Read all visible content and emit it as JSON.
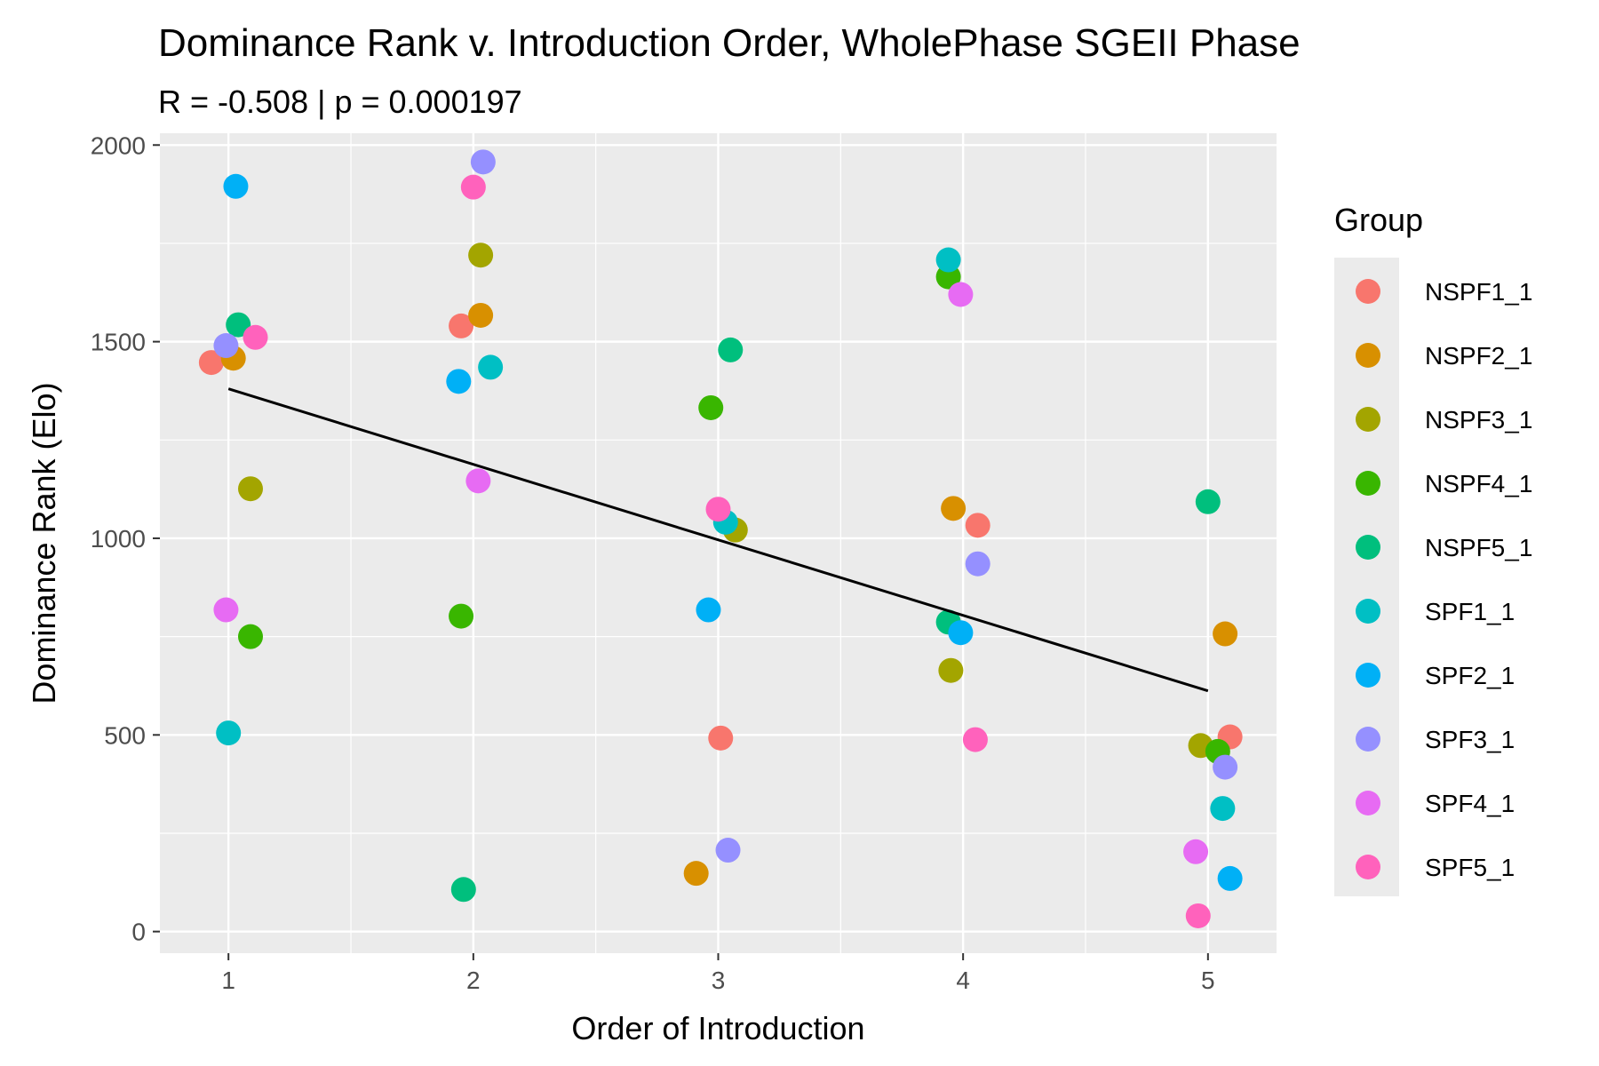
{
  "chart_data": {
    "type": "scatter",
    "title": "Dominance Rank v. Introduction Order, WholePhase SGEII Phase",
    "subtitle": "R = -0.508 | p = 0.000197",
    "xlabel": "Order of Introduction",
    "ylabel": "Dominance Rank (Elo)",
    "xlim": [
      0.72,
      5.28
    ],
    "ylim": [
      -55,
      2030
    ],
    "x_ticks": [
      1,
      2,
      3,
      4,
      5
    ],
    "y_ticks": [
      0,
      500,
      1000,
      1500,
      2000
    ],
    "grid": true,
    "legend": {
      "title": "Group",
      "position": "right"
    },
    "trend_line": {
      "x": [
        1,
        5
      ],
      "y": [
        1380,
        612
      ]
    },
    "series": [
      {
        "name": "NSPF1_1",
        "color": "#F8766D",
        "points": [
          [
            0.93,
            1447
          ],
          [
            1.95,
            1540
          ],
          [
            3.01,
            492
          ],
          [
            4.06,
            1033
          ],
          [
            5.09,
            495
          ]
        ]
      },
      {
        "name": "NSPF2_1",
        "color": "#D89000",
        "points": [
          [
            1.02,
            1458
          ],
          [
            2.03,
            1567
          ],
          [
            2.91,
            148
          ],
          [
            3.96,
            1076
          ],
          [
            5.07,
            757
          ]
        ]
      },
      {
        "name": "NSPF3_1",
        "color": "#A3A500",
        "points": [
          [
            1.09,
            1126
          ],
          [
            2.03,
            1720
          ],
          [
            3.07,
            1021
          ],
          [
            3.95,
            664
          ],
          [
            4.97,
            473
          ]
        ]
      },
      {
        "name": "NSPF4_1",
        "color": "#39B600",
        "points": [
          [
            1.09,
            750
          ],
          [
            1.95,
            802
          ],
          [
            2.97,
            1332
          ],
          [
            3.94,
            1665
          ],
          [
            5.04,
            458
          ]
        ]
      },
      {
        "name": "NSPF5_1",
        "color": "#00BF7D",
        "points": [
          [
            1.04,
            1543
          ],
          [
            1.96,
            107
          ],
          [
            3.05,
            1479
          ],
          [
            3.94,
            787
          ],
          [
            5.0,
            1093
          ]
        ]
      },
      {
        "name": "SPF1_1",
        "color": "#00BFC4",
        "points": [
          [
            1.0,
            505
          ],
          [
            2.07,
            1435
          ],
          [
            3.03,
            1041
          ],
          [
            3.94,
            1708
          ],
          [
            5.06,
            313
          ]
        ]
      },
      {
        "name": "SPF2_1",
        "color": "#00B0F6",
        "points": [
          [
            1.03,
            1895
          ],
          [
            1.94,
            1399
          ],
          [
            2.96,
            818
          ],
          [
            3.99,
            760
          ],
          [
            5.09,
            135
          ]
        ]
      },
      {
        "name": "SPF3_1",
        "color": "#9590FF",
        "points": [
          [
            0.99,
            1490
          ],
          [
            2.04,
            1957
          ],
          [
            3.04,
            207
          ],
          [
            4.06,
            935
          ],
          [
            5.07,
            418
          ]
        ]
      },
      {
        "name": "SPF4_1",
        "color": "#E76BF3",
        "points": [
          [
            0.99,
            818
          ],
          [
            2.02,
            1146
          ],
          [
            3.99,
            1620
          ],
          [
            4.95,
            203
          ]
        ]
      },
      {
        "name": "SPF5_1",
        "color": "#FF62BC",
        "points": [
          [
            1.11,
            1511
          ],
          [
            2.0,
            1893
          ],
          [
            3.0,
            1074
          ],
          [
            4.05,
            488
          ],
          [
            4.96,
            40
          ]
        ]
      }
    ]
  }
}
